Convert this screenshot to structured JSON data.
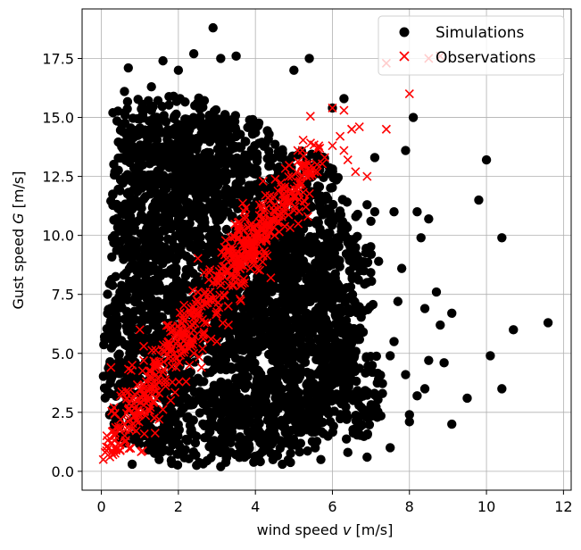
{
  "chart_data": {
    "type": "scatter",
    "xlabel_prefix": "wind speed ",
    "xlabel_var": "v",
    "xlabel_suffix": " [m/s]",
    "ylabel_prefix": "Gust speed ",
    "ylabel_var": "G",
    "ylabel_suffix": " [m/s]",
    "xlim": [
      -0.5,
      12.2
    ],
    "ylim": [
      -0.8,
      19.6
    ],
    "xticks": [
      0,
      2,
      4,
      6,
      8,
      10,
      12
    ],
    "xtick_labels": [
      "0",
      "2",
      "4",
      "6",
      "8",
      "10",
      "12"
    ],
    "yticks": [
      0.0,
      2.5,
      5.0,
      7.5,
      10.0,
      12.5,
      15.0,
      17.5
    ],
    "ytick_labels": [
      "0.0",
      "2.5",
      "5.0",
      "7.5",
      "10.0",
      "12.5",
      "15.0",
      "17.5"
    ],
    "grid": true,
    "legend_position": "top-right",
    "series": [
      {
        "name": "Simulations",
        "marker": "circle",
        "color": "#000000",
        "points": [
          [
            2.9,
            18.8
          ],
          [
            2.4,
            17.7
          ],
          [
            3.1,
            17.5
          ],
          [
            3.5,
            17.6
          ],
          [
            0.7,
            17.1
          ],
          [
            1.6,
            17.4
          ],
          [
            5.4,
            17.5
          ],
          [
            6.0,
            15.4
          ],
          [
            6.3,
            15.8
          ],
          [
            7.9,
            13.6
          ],
          [
            8.1,
            15.0
          ],
          [
            7.1,
            13.3
          ],
          [
            6.9,
            11.3
          ],
          [
            7.1,
            11.0
          ],
          [
            7.6,
            11.0
          ],
          [
            8.2,
            11.0
          ],
          [
            8.5,
            10.7
          ],
          [
            8.3,
            9.9
          ],
          [
            9.8,
            11.5
          ],
          [
            10.0,
            13.2
          ],
          [
            10.4,
            9.9
          ],
          [
            7.8,
            8.6
          ],
          [
            8.7,
            7.6
          ],
          [
            9.1,
            6.7
          ],
          [
            8.4,
            6.9
          ],
          [
            7.7,
            7.2
          ],
          [
            8.8,
            6.2
          ],
          [
            10.7,
            6.0
          ],
          [
            11.6,
            6.3
          ],
          [
            10.1,
            4.9
          ],
          [
            8.9,
            4.6
          ],
          [
            8.5,
            4.7
          ],
          [
            7.5,
            4.9
          ],
          [
            7.9,
            4.1
          ],
          [
            8.4,
            3.5
          ],
          [
            8.2,
            3.2
          ],
          [
            9.5,
            3.1
          ],
          [
            10.4,
            3.5
          ],
          [
            9.1,
            2.0
          ],
          [
            8.0,
            2.4
          ],
          [
            8.0,
            2.1
          ],
          [
            7.0,
            2.5
          ],
          [
            6.6,
            1.8
          ],
          [
            6.4,
            0.8
          ],
          [
            7.5,
            1.0
          ],
          [
            6.9,
            0.6
          ],
          [
            5.7,
            0.5
          ],
          [
            4.7,
            0.3
          ],
          [
            3.1,
            0.2
          ],
          [
            0.8,
            0.3
          ],
          [
            1.5,
            0.5
          ],
          [
            6.6,
            3.2
          ],
          [
            7.3,
            3.3
          ],
          [
            6.0,
            6.9
          ],
          [
            6.8,
            5.9
          ],
          [
            7.6,
            5.5
          ],
          [
            6.4,
            9.7
          ],
          [
            7.2,
            8.9
          ],
          [
            7.0,
            10.6
          ],
          [
            5.0,
            17.0
          ],
          [
            0.6,
            16.1
          ],
          [
            1.3,
            16.3
          ],
          [
            0.3,
            15.2
          ],
          [
            2.0,
            17.0
          ]
        ],
        "blobs": [
          {
            "cx": 2.55,
            "cy": 7.4,
            "rx": 2.4,
            "ry": 7.6
          },
          {
            "cx": 3.3,
            "cy": 10.0,
            "rx": 2.0,
            "ry": 5.2
          },
          {
            "cx": 4.5,
            "cy": 6.0,
            "rx": 1.7,
            "ry": 5.0
          },
          {
            "cx": 1.2,
            "cy": 4.5,
            "rx": 1.2,
            "ry": 4.0
          },
          {
            "cx": 2.0,
            "cy": 13.8,
            "rx": 1.4,
            "ry": 2.3
          },
          {
            "cx": 5.5,
            "cy": 5.0,
            "rx": 1.1,
            "ry": 3.8
          },
          {
            "cx": 5.3,
            "cy": 11.4,
            "rx": 1.0,
            "ry": 2.2
          },
          {
            "cx": 4.2,
            "cy": 1.8,
            "rx": 1.6,
            "ry": 1.6
          },
          {
            "cx": 6.2,
            "cy": 8.0,
            "rx": 0.9,
            "ry": 3.5
          },
          {
            "cx": 6.5,
            "cy": 3.5,
            "rx": 0.9,
            "ry": 2.2
          },
          {
            "cx": 1.0,
            "cy": 11.5,
            "rx": 0.8,
            "ry": 3.2
          },
          {
            "cx": 0.9,
            "cy": 14.5,
            "rx": 0.6,
            "ry": 1.3
          }
        ]
      },
      {
        "name": "Observations",
        "marker": "x",
        "color": "#ff0000",
        "points": [
          [
            0.05,
            0.5
          ],
          [
            0.1,
            0.8
          ],
          [
            0.2,
            1.0
          ],
          [
            0.3,
            0.7
          ],
          [
            0.35,
            1.5
          ],
          [
            0.45,
            1.2
          ],
          [
            0.5,
            2.2
          ],
          [
            0.25,
            4.4
          ],
          [
            0.6,
            2.0
          ],
          [
            0.7,
            2.6
          ],
          [
            0.8,
            1.8
          ],
          [
            0.9,
            3.0
          ],
          [
            1.0,
            2.4
          ],
          [
            1.1,
            3.5
          ],
          [
            1.2,
            3.0
          ],
          [
            1.3,
            4.0
          ],
          [
            1.4,
            3.6
          ],
          [
            1.5,
            4.5
          ],
          [
            1.6,
            4.2
          ],
          [
            1.7,
            5.0
          ],
          [
            1.8,
            5.4
          ],
          [
            1.9,
            5.0
          ],
          [
            2.0,
            5.8
          ],
          [
            2.1,
            6.3
          ],
          [
            2.2,
            6.0
          ],
          [
            2.3,
            6.8
          ],
          [
            2.4,
            6.5
          ],
          [
            2.5,
            7.2
          ],
          [
            2.6,
            7.0
          ],
          [
            2.7,
            7.6
          ],
          [
            2.8,
            7.3
          ],
          [
            2.9,
            8.0
          ],
          [
            3.0,
            8.3
          ],
          [
            3.1,
            7.9
          ],
          [
            3.2,
            8.7
          ],
          [
            3.3,
            8.5
          ],
          [
            3.4,
            9.0
          ],
          [
            3.5,
            9.2
          ],
          [
            3.6,
            8.9
          ],
          [
            3.7,
            9.5
          ],
          [
            3.8,
            9.8
          ],
          [
            3.9,
            9.6
          ],
          [
            4.0,
            10.1
          ],
          [
            4.1,
            9.9
          ],
          [
            4.3,
            10.4
          ],
          [
            4.5,
            10.0
          ],
          [
            4.6,
            10.8
          ],
          [
            4.8,
            11.2
          ],
          [
            5.0,
            11.6
          ],
          [
            5.2,
            12.2
          ],
          [
            5.4,
            12.6
          ],
          [
            5.6,
            13.0
          ],
          [
            5.8,
            13.3
          ],
          [
            6.0,
            13.8
          ],
          [
            6.2,
            14.2
          ],
          [
            6.3,
            13.6
          ],
          [
            6.5,
            14.5
          ],
          [
            6.7,
            14.6
          ],
          [
            6.4,
            13.2
          ],
          [
            6.6,
            12.7
          ],
          [
            6.9,
            12.5
          ],
          [
            7.4,
            14.5
          ],
          [
            7.4,
            17.3
          ],
          [
            8.0,
            16.0
          ],
          [
            8.5,
            17.5
          ],
          [
            8.8,
            17.6
          ],
          [
            6.3,
            15.3
          ],
          [
            6.0,
            15.4
          ],
          [
            5.1,
            13.6
          ],
          [
            4.2,
            12.3
          ],
          [
            3.0,
            5.5
          ],
          [
            2.6,
            4.4
          ],
          [
            2.4,
            5.0
          ],
          [
            1.1,
            5.3
          ],
          [
            1.0,
            6.0
          ],
          [
            0.8,
            4.5
          ],
          [
            0.5,
            3.2
          ],
          [
            1.5,
            2.2
          ],
          [
            1.8,
            3.0
          ],
          [
            2.2,
            3.8
          ],
          [
            3.6,
            7.3
          ],
          [
            4.4,
            8.2
          ],
          [
            4.0,
            8.8
          ],
          [
            3.3,
            6.2
          ]
        ],
        "cloud": [
          {
            "cx": 2.1,
            "cy": 5.6,
            "spread_x": 0.55,
            "spread_y": 0.9,
            "slope": 2.45,
            "x0": 0.2,
            "x1": 4.0
          },
          {
            "cx": 4.2,
            "cy": 10.2,
            "spread_x": 0.45,
            "spread_y": 0.7,
            "slope": 2.3,
            "x0": 3.4,
            "x1": 5.6
          }
        ]
      }
    ]
  }
}
